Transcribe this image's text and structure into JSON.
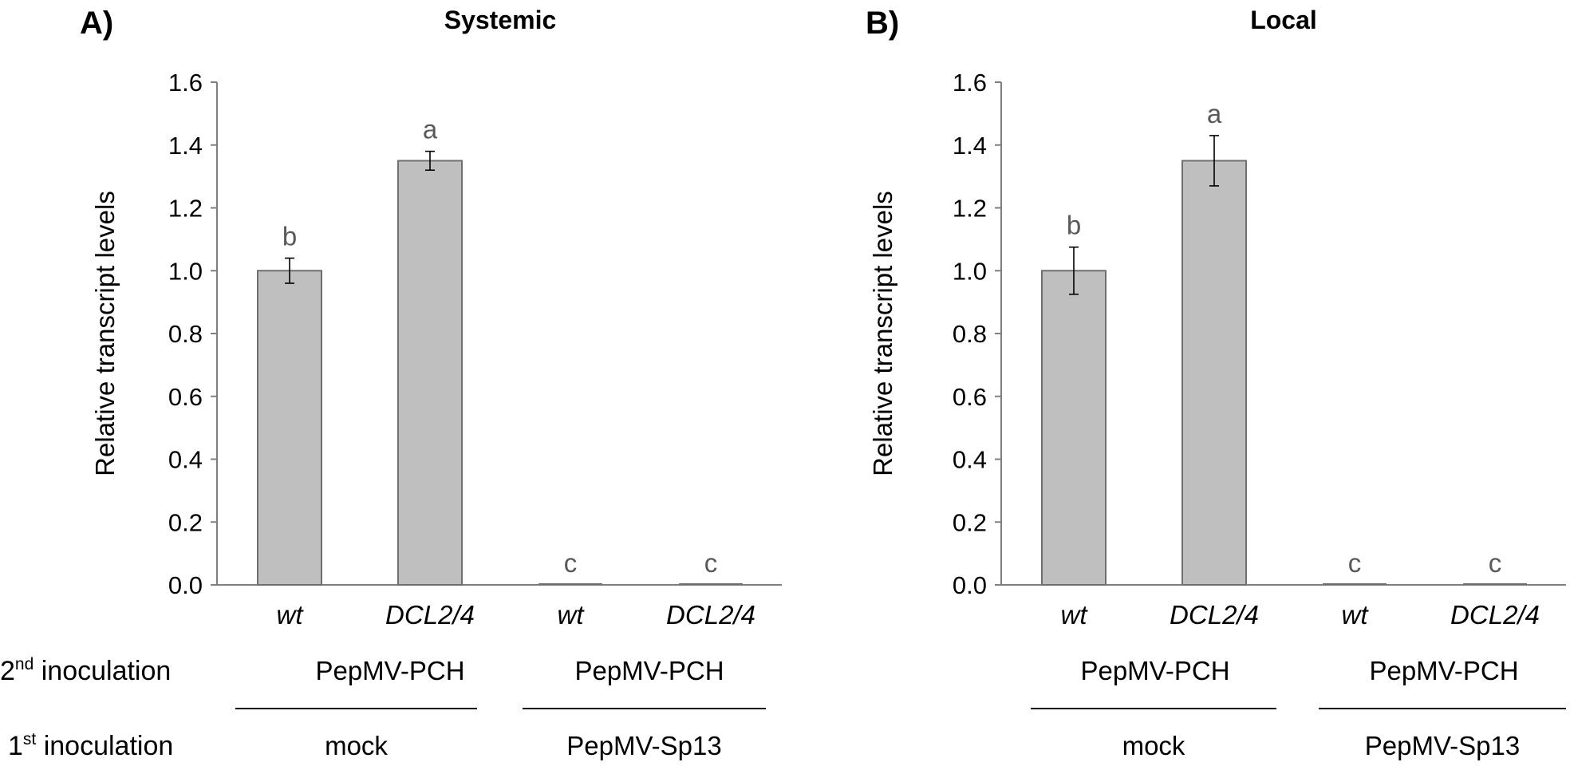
{
  "chart_data": [
    {
      "type": "bar",
      "panel_label": "A)",
      "title": "Systemic",
      "ylabel": "Relative transcript levels",
      "ylim": [
        0,
        1.6
      ],
      "yticks": [
        "0.0",
        "0.2",
        "0.4",
        "0.6",
        "0.8",
        "1.0",
        "1.2",
        "1.4",
        "1.6"
      ],
      "ytick_values": [
        0,
        0.2,
        0.4,
        0.6,
        0.8,
        1.0,
        1.2,
        1.4,
        1.6
      ],
      "categories": [
        "wt",
        "DCL2/4",
        "wt",
        "DCL2/4"
      ],
      "values": [
        1.0,
        1.35,
        0.0,
        0.0
      ],
      "errors": [
        0.04,
        0.03,
        0.0,
        0.0
      ],
      "significance": [
        "b",
        "a",
        "c",
        "c"
      ],
      "groups_2nd": [
        "PepMV-PCH",
        "PepMV-PCH"
      ],
      "groups_1st": [
        "mock",
        "PepMV-Sp13"
      ],
      "bar_color": "#bfbfbf"
    },
    {
      "type": "bar",
      "panel_label": "B)",
      "title": "Local",
      "ylabel": "Relative transcript levels",
      "ylim": [
        0,
        1.6
      ],
      "yticks": [
        "0.0",
        "0.2",
        "0.4",
        "0.6",
        "0.8",
        "1.0",
        "1.2",
        "1.4",
        "1.6"
      ],
      "ytick_values": [
        0,
        0.2,
        0.4,
        0.6,
        0.8,
        1.0,
        1.2,
        1.4,
        1.6
      ],
      "categories": [
        "wt",
        "DCL2/4",
        "wt",
        "DCL2/4"
      ],
      "values": [
        1.0,
        1.35,
        0.0,
        0.0
      ],
      "errors": [
        0.075,
        0.08,
        0.0,
        0.0
      ],
      "significance": [
        "b",
        "a",
        "c",
        "c"
      ],
      "groups_2nd": [
        "PepMV-PCH",
        "PepMV-PCH"
      ],
      "groups_1st": [
        "mock",
        "PepMV-Sp13"
      ],
      "bar_color": "#bfbfbf"
    }
  ],
  "row_labels": {
    "second": {
      "ordinal": "2",
      "suffix": "nd",
      "text": " inoculation"
    },
    "first": {
      "ordinal": "1",
      "suffix": "st",
      "text": " inoculation"
    }
  }
}
